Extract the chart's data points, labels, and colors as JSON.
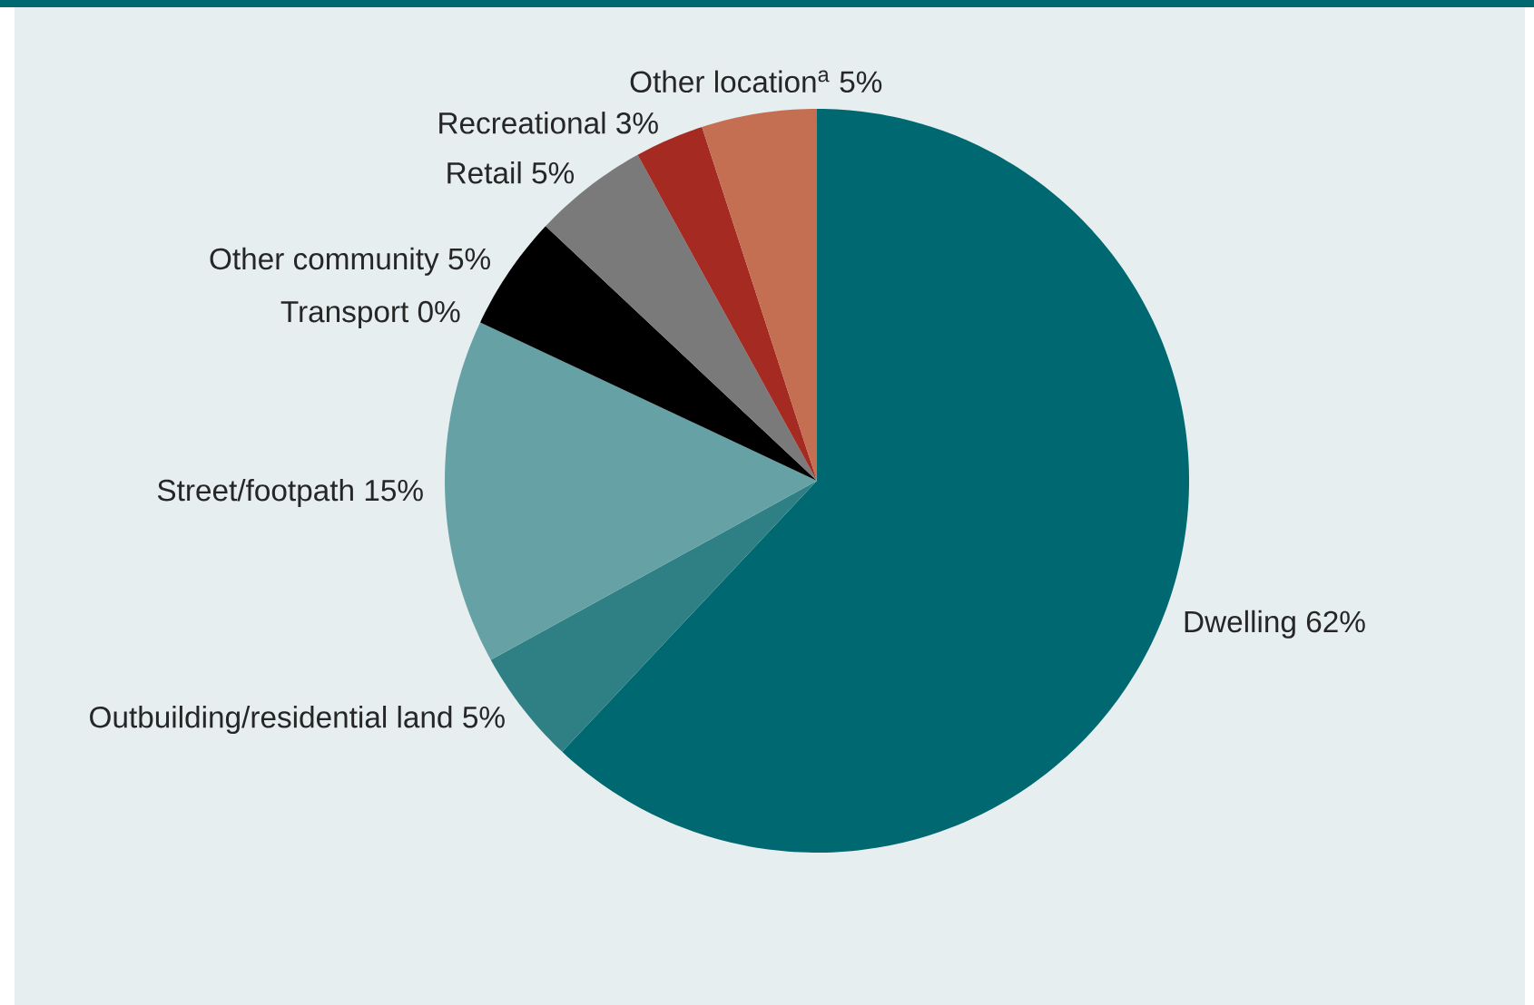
{
  "chart_data": {
    "type": "pie",
    "categories": [
      "Dwelling",
      "Outbuilding/residential land",
      "Street/footpath",
      "Transport",
      "Other community",
      "Retail",
      "Recreational",
      "Other location$^{a}$"
    ],
    "values": [
      62,
      5,
      15,
      0,
      5,
      5,
      3,
      5
    ],
    "value_labels": [
      "62%",
      "5%",
      "15%",
      "0%",
      "5%",
      "5%",
      "3%",
      "5%"
    ],
    "colors": [
      "#006870",
      "#2e8085",
      "#66a2a5",
      "#1a1a1a",
      "#000000",
      "#7a7a7a",
      "#a52a22",
      "#c46e52"
    ]
  }
}
